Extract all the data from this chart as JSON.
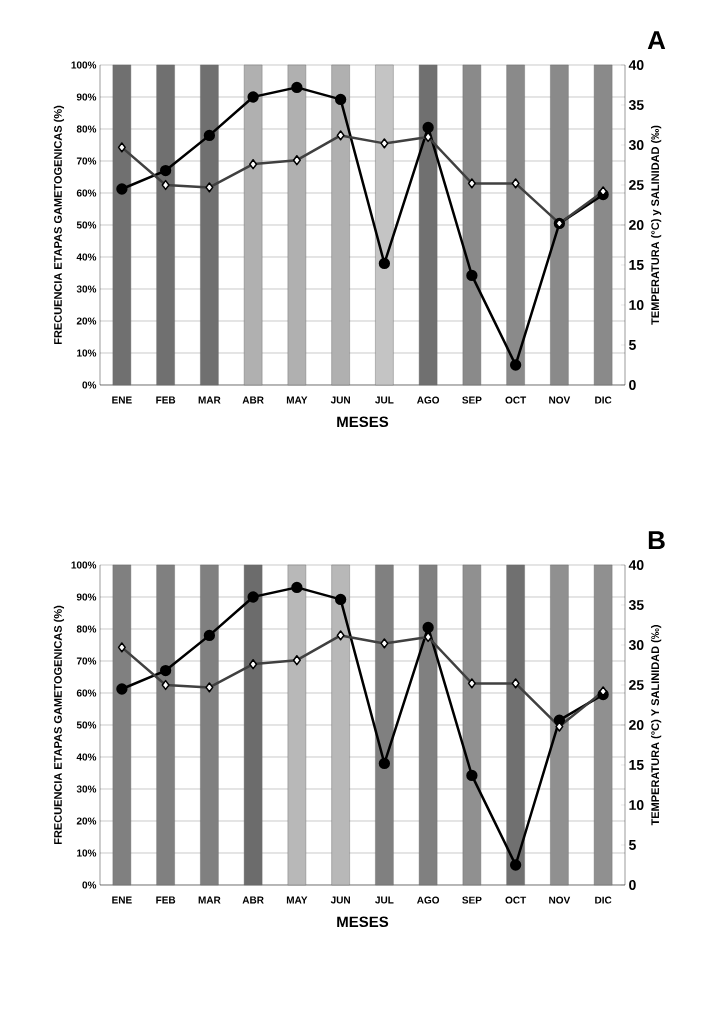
{
  "chart_data": [
    {
      "type": "bar",
      "title": "A",
      "xlabel": "MESES",
      "ylabel": "FRECUENCIA ETAPAS GAMETOGENICAS (%)",
      "y2label": "TEMPERATURA (°C) y SALINIDAD (‰)",
      "categories": [
        "ENE",
        "FEB",
        "MAR",
        "ABR",
        "MAY",
        "JUN",
        "JUL",
        "AGO",
        "SEP",
        "OCT",
        "NOV",
        "DIC"
      ],
      "ylim": [
        0,
        100
      ],
      "yticks": [
        {
          "value": 0,
          "label": "0%"
        },
        {
          "value": 10,
          "label": "10%"
        },
        {
          "value": 20,
          "label": "20%"
        },
        {
          "value": 30,
          "label": "30%"
        },
        {
          "value": 40,
          "label": "40%"
        },
        {
          "value": 50,
          "label": "50%"
        },
        {
          "value": 60,
          "label": "60%"
        },
        {
          "value": 70,
          "label": "70%"
        },
        {
          "value": 80,
          "label": "80%"
        },
        {
          "value": 90,
          "label": "90%"
        },
        {
          "value": 100,
          "label": "100%"
        }
      ],
      "y2lim": [
        0,
        40
      ],
      "y2ticks": [
        0,
        5,
        10,
        15,
        20,
        25,
        30,
        35,
        40
      ],
      "grid": true,
      "series": [
        {
          "colors": [
            "#707070",
            "#707070",
            "#707070",
            "#b0b0b0",
            "#b0b0b0",
            "#b0b0b0",
            "#c4c4c4",
            "#707070",
            "#8a8a8a",
            "#8a8a8a",
            "#8a8a8a",
            "#8a8a8a"
          ],
          "values": [
            100,
            100,
            100,
            100,
            100,
            100,
            100,
            100,
            100,
            100,
            100,
            100
          ]
        },
        {
          "type": "line",
          "axis": "y2",
          "color": "#000000",
          "marker": "circle",
          "values": [
            24.5,
            26.8,
            31.2,
            36,
            37.2,
            35.7,
            15.2,
            32.2,
            13.7,
            2.5,
            20.2,
            23.8
          ]
        },
        {
          "type": "line",
          "axis": "y2",
          "color": "#404040",
          "marker": "diamond",
          "values": [
            29.7,
            25,
            24.7,
            27.6,
            28.1,
            31.2,
            30.2,
            31,
            25.2,
            25.2,
            20.2,
            24.2
          ]
        }
      ]
    },
    {
      "type": "bar",
      "title": "B",
      "xlabel": "MESES",
      "ylabel": "FRECUENCIA ETAPAS GAMETOGENICAS (%)",
      "y2label": "TEMPERATURA (°C) Y SALINIDAD (‰)",
      "categories": [
        "ENE",
        "FEB",
        "MAR",
        "ABR",
        "MAY",
        "JUN",
        "JUL",
        "AGO",
        "SEP",
        "OCT",
        "NOV",
        "DIC"
      ],
      "ylim": [
        0,
        100
      ],
      "yticks": [
        {
          "value": 0,
          "label": "0%"
        },
        {
          "value": 10,
          "label": "10%"
        },
        {
          "value": 20,
          "label": "20%"
        },
        {
          "value": 30,
          "label": "30%"
        },
        {
          "value": 40,
          "label": "40%"
        },
        {
          "value": 50,
          "label": "50%"
        },
        {
          "value": 60,
          "label": "60%"
        },
        {
          "value": 70,
          "label": "70%"
        },
        {
          "value": 80,
          "label": "80%"
        },
        {
          "value": 90,
          "label": "90%"
        },
        {
          "value": 100,
          "label": "100%"
        }
      ],
      "y2lim": [
        0,
        40
      ],
      "y2ticks": [
        0,
        5,
        10,
        15,
        20,
        25,
        30,
        35,
        40
      ],
      "grid": true,
      "series": [
        {
          "colors": [
            "#808080",
            "#808080",
            "#808080",
            "#6c6c6c",
            "#b8b8b8",
            "#b8b8b8",
            "#808080",
            "#808080",
            "#909090",
            "#707070",
            "#909090",
            "#909090"
          ],
          "values": [
            100,
            100,
            100,
            100,
            100,
            100,
            100,
            100,
            100,
            100,
            100,
            100
          ]
        },
        {
          "type": "line",
          "axis": "y2",
          "color": "#000000",
          "marker": "circle",
          "values": [
            24.5,
            26.8,
            31.2,
            36,
            37.2,
            35.7,
            15.2,
            32.2,
            13.7,
            2.5,
            20.6,
            23.8
          ]
        },
        {
          "type": "line",
          "axis": "y2",
          "color": "#404040",
          "marker": "diamond",
          "values": [
            29.7,
            25,
            24.7,
            27.6,
            28.1,
            31.2,
            30.2,
            31,
            25.2,
            25.2,
            19.8,
            24.2
          ]
        }
      ]
    }
  ]
}
